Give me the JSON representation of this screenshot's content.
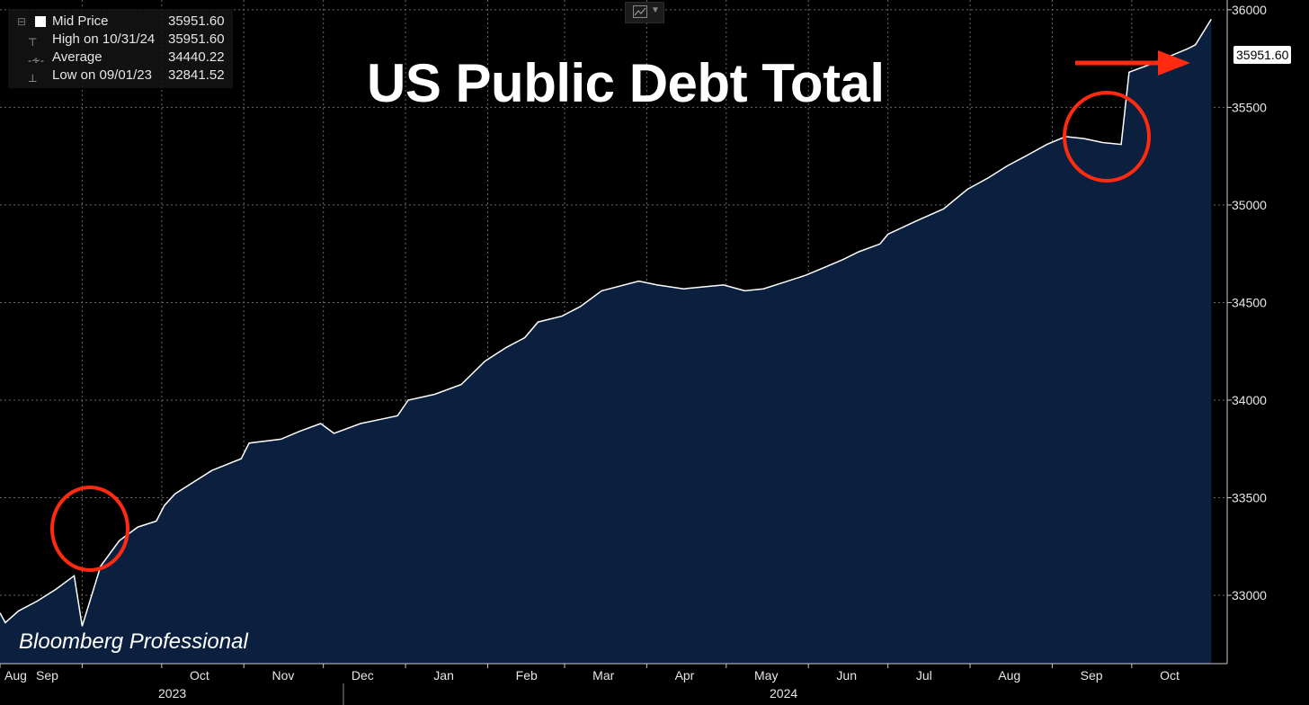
{
  "title": "US Public Debt Total",
  "watermark": "Bloomberg Professional",
  "legend": {
    "rows": [
      {
        "label": "Mid Price",
        "value": "35951.60"
      },
      {
        "label": "High on 10/31/24",
        "value": "35951.60"
      },
      {
        "label": "Average",
        "value": "34440.22"
      },
      {
        "label": "Low on 09/01/23",
        "value": "32841.52"
      }
    ]
  },
  "last_price_label": "35951.60",
  "toolbar": {
    "chart_type_icon": "line-chart-icon",
    "dropdown_icon": "chevron-down-icon"
  },
  "colors": {
    "background": "#000000",
    "area_fill": "#0b1f3f",
    "line": "#ffffff",
    "grid": "#555555",
    "annotation": "#ff2a10"
  },
  "chart_data": {
    "type": "area",
    "title": "US Public Debt Total",
    "x_ticks": [
      "Aug",
      "Sep",
      "Oct",
      "Nov",
      "Dec",
      "Jan",
      "Feb",
      "Mar",
      "Apr",
      "May",
      "Jun",
      "Jul",
      "Aug",
      "Sep",
      "Oct"
    ],
    "year_labels": [
      "2023",
      "2024"
    ],
    "y_ticks": [
      "33000",
      "33500",
      "34000",
      "34500",
      "35000",
      "35500",
      "36000"
    ],
    "ylim": [
      32650,
      36050
    ],
    "xlim": [
      "2023-08-01",
      "2024-11-06"
    ],
    "grid": true,
    "series": [
      {
        "name": "Mid Price",
        "x": [
          "2023-08-01",
          "2023-08-03",
          "2023-08-08",
          "2023-08-15",
          "2023-08-22",
          "2023-08-29",
          "2023-09-01",
          "2023-09-08",
          "2023-09-15",
          "2023-09-22",
          "2023-09-29",
          "2023-10-02",
          "2023-10-06",
          "2023-10-13",
          "2023-10-20",
          "2023-10-31",
          "2023-11-03",
          "2023-11-15",
          "2023-11-22",
          "2023-11-30",
          "2023-12-05",
          "2023-12-15",
          "2023-12-22",
          "2023-12-29",
          "2024-01-02",
          "2024-01-12",
          "2024-01-22",
          "2024-01-31",
          "2024-02-08",
          "2024-02-15",
          "2024-02-20",
          "2024-02-29",
          "2024-03-07",
          "2024-03-15",
          "2024-03-29",
          "2024-04-05",
          "2024-04-15",
          "2024-04-22",
          "2024-04-30",
          "2024-05-08",
          "2024-05-15",
          "2024-05-22",
          "2024-05-31",
          "2024-06-07",
          "2024-06-14",
          "2024-06-20",
          "2024-06-28",
          "2024-07-01",
          "2024-07-12",
          "2024-07-22",
          "2024-07-31",
          "2024-08-08",
          "2024-08-15",
          "2024-08-22",
          "2024-08-30",
          "2024-09-06",
          "2024-09-13",
          "2024-09-20",
          "2024-09-27",
          "2024-09-30",
          "2024-10-02",
          "2024-10-08",
          "2024-10-15",
          "2024-10-22",
          "2024-10-25",
          "2024-10-31"
        ],
        "values": [
          32910,
          32860,
          32920,
          32970,
          33030,
          33100,
          32841.52,
          33150,
          33280,
          33350,
          33380,
          33460,
          33520,
          33580,
          33640,
          33700,
          33780,
          33800,
          33840,
          33880,
          33830,
          33880,
          33900,
          33920,
          34000,
          34030,
          34080,
          34200,
          34270,
          34320,
          34400,
          34430,
          34480,
          34560,
          34610,
          34590,
          34570,
          34580,
          34590,
          34560,
          34570,
          34600,
          34640,
          34680,
          34720,
          34760,
          34800,
          34850,
          34920,
          34980,
          35080,
          35140,
          35200,
          35250,
          35310,
          35350,
          35340,
          35320,
          35310,
          35680,
          35690,
          35720,
          35760,
          35800,
          35820,
          35951.6
        ]
      }
    ]
  }
}
